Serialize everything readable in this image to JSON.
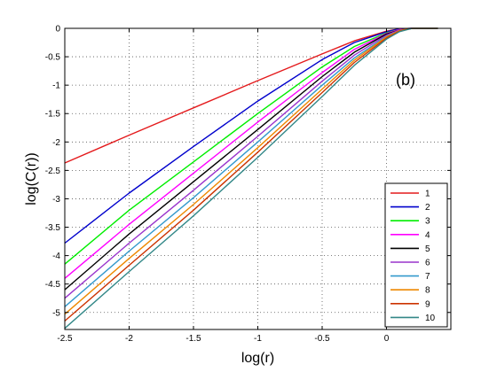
{
  "chart_data": {
    "type": "line",
    "xlabel": "log(r)",
    "ylabel": "log(C(r))",
    "annotation": "(b)",
    "xlim": [
      -2.5,
      0.5
    ],
    "ylim": [
      -5.3,
      0
    ],
    "xticks": [
      -2.5,
      -2,
      -1.5,
      -1,
      -0.5,
      0
    ],
    "xtick_labels": [
      "-2.5",
      "-2",
      "-1.5",
      "-1",
      "-0.5",
      "0"
    ],
    "yticks": [
      0,
      -0.5,
      -1,
      -1.5,
      -2,
      -2.5,
      -3,
      -3.5,
      -4,
      -4.5,
      -5
    ],
    "ytick_labels": [
      "0",
      "-0.5",
      "-1",
      "-1.5",
      "-2",
      "-2.5",
      "-3",
      "-3.5",
      "-4",
      "-4.5",
      "-5"
    ],
    "grid": true,
    "legend_position": "bottom-right",
    "series": [
      {
        "name": "1",
        "color": "#e41a1c",
        "x": [
          -2.5,
          -2,
          -1.5,
          -1,
          -0.5,
          -0.25,
          0,
          0.1,
          0.2,
          0.4
        ],
        "y": [
          -2.37,
          -1.88,
          -1.4,
          -0.92,
          -0.45,
          -0.22,
          -0.05,
          -0.01,
          0,
          0
        ]
      },
      {
        "name": "2",
        "color": "#0000cc",
        "x": [
          -2.5,
          -2,
          -1.5,
          -1,
          -0.5,
          -0.25,
          0,
          0.1,
          0.2,
          0.4
        ],
        "y": [
          -3.78,
          -2.9,
          -2.08,
          -1.28,
          -0.55,
          -0.25,
          -0.06,
          -0.01,
          0,
          0
        ]
      },
      {
        "name": "3",
        "color": "#00ee00",
        "x": [
          -2.5,
          -2,
          -1.5,
          -1,
          -0.5,
          -0.25,
          0,
          0.1,
          0.2,
          0.4
        ],
        "y": [
          -4.15,
          -3.2,
          -2.35,
          -1.5,
          -0.68,
          -0.32,
          -0.08,
          -0.02,
          0,
          0
        ]
      },
      {
        "name": "4",
        "color": "#ff00ff",
        "x": [
          -2.5,
          -2,
          -1.5,
          -1,
          -0.5,
          -0.25,
          0,
          0.1,
          0.2,
          0.4
        ],
        "y": [
          -4.4,
          -3.45,
          -2.55,
          -1.65,
          -0.78,
          -0.37,
          -0.09,
          -0.02,
          0,
          0
        ]
      },
      {
        "name": "5",
        "color": "#000000",
        "x": [
          -2.5,
          -2,
          -1.5,
          -1,
          -0.5,
          -0.25,
          0,
          0.1,
          0.2,
          0.4
        ],
        "y": [
          -4.6,
          -3.62,
          -2.7,
          -1.78,
          -0.85,
          -0.42,
          -0.1,
          -0.03,
          0,
          0
        ]
      },
      {
        "name": "6",
        "color": "#9933cc",
        "x": [
          -2.5,
          -2,
          -1.5,
          -1,
          -0.5,
          -0.25,
          0,
          0.1,
          0.2,
          0.4
        ],
        "y": [
          -4.75,
          -3.78,
          -2.85,
          -1.9,
          -0.93,
          -0.47,
          -0.12,
          -0.03,
          0,
          0
        ]
      },
      {
        "name": "7",
        "color": "#3399cc",
        "x": [
          -2.5,
          -2,
          -1.5,
          -1,
          -0.5,
          -0.25,
          0,
          0.1,
          0.2,
          0.4
        ],
        "y": [
          -4.9,
          -3.92,
          -2.98,
          -2.0,
          -1.0,
          -0.52,
          -0.14,
          -0.04,
          0,
          0
        ]
      },
      {
        "name": "8",
        "color": "#ee8800",
        "x": [
          -2.5,
          -2,
          -1.5,
          -1,
          -0.5,
          -0.25,
          0,
          0.1,
          0.2,
          0.4
        ],
        "y": [
          -5.03,
          -4.05,
          -3.1,
          -2.1,
          -1.07,
          -0.56,
          -0.15,
          -0.04,
          0,
          0
        ]
      },
      {
        "name": "9",
        "color": "#cc3300",
        "x": [
          -2.5,
          -2,
          -1.5,
          -1,
          -0.5,
          -0.25,
          0,
          0.1,
          0.2,
          0.4
        ],
        "y": [
          -5.15,
          -4.17,
          -3.2,
          -2.18,
          -1.13,
          -0.6,
          -0.17,
          -0.05,
          0,
          0
        ]
      },
      {
        "name": "10",
        "color": "#338888",
        "x": [
          -2.5,
          -2,
          -1.5,
          -1,
          -0.5,
          -0.25,
          0,
          0.1,
          0.2,
          0.4
        ],
        "y": [
          -5.28,
          -4.28,
          -3.3,
          -2.27,
          -1.2,
          -0.65,
          -0.19,
          -0.06,
          0,
          0
        ]
      }
    ]
  }
}
